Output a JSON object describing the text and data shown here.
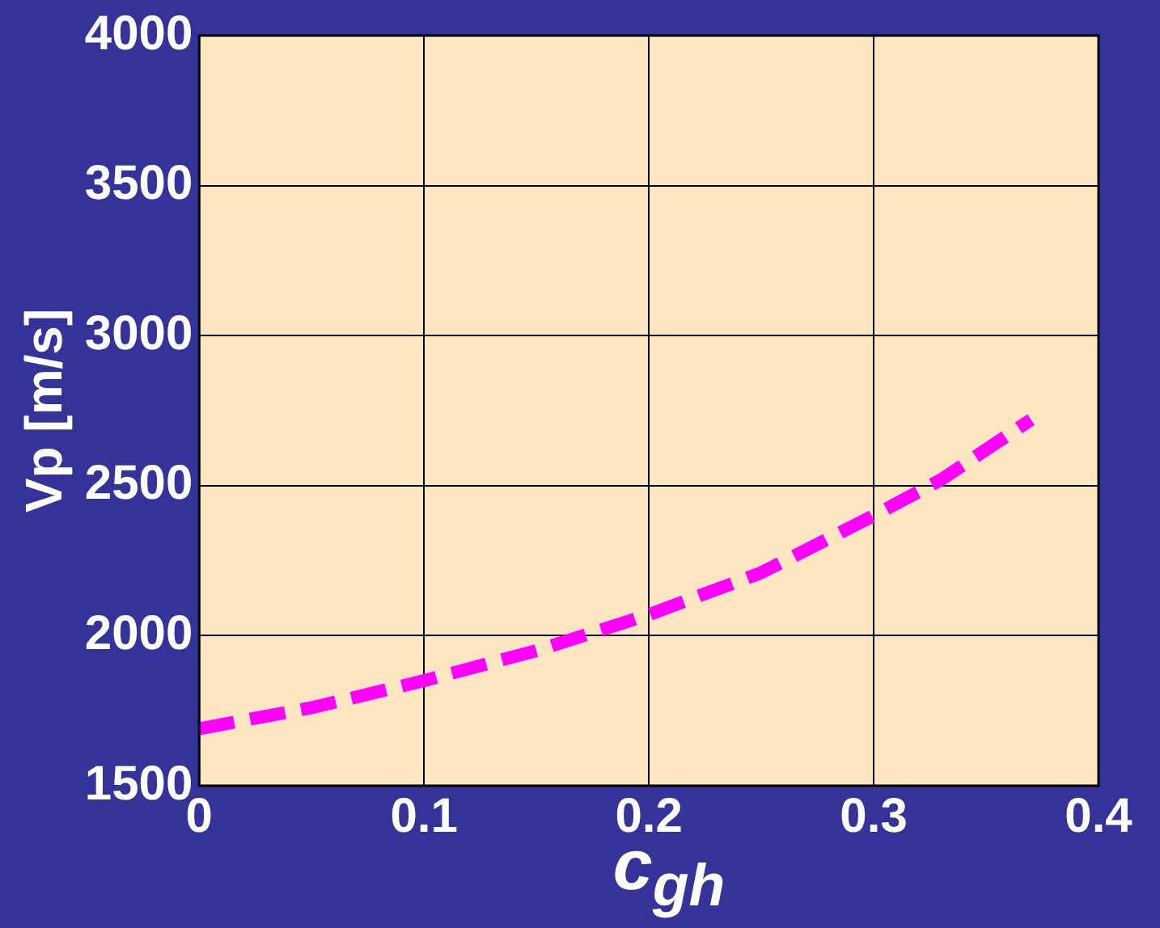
{
  "chart_data": {
    "type": "line",
    "xlabel": "c$_{gh}$",
    "ylabel": "Vp [m/s]",
    "x": [
      0,
      0.05,
      0.1,
      0.15,
      0.2,
      0.25,
      0.3,
      0.33,
      0.37
    ],
    "series": [
      {
        "color": "#ff00ff",
        "values": [
          1690,
          1760,
          1850,
          1950,
          2070,
          2210,
          2400,
          2520,
          2720
        ]
      }
    ],
    "xlim": [
      0,
      0.4
    ],
    "xticks": [
      0,
      0.1,
      0.2,
      0.3,
      0.4
    ],
    "ylim": [
      1500,
      4000
    ],
    "yticks": [
      1500,
      2000,
      2500,
      3000,
      3500,
      4000
    ],
    "grid": true,
    "legend": false,
    "marker": "none",
    "line_style": "dashed"
  }
}
